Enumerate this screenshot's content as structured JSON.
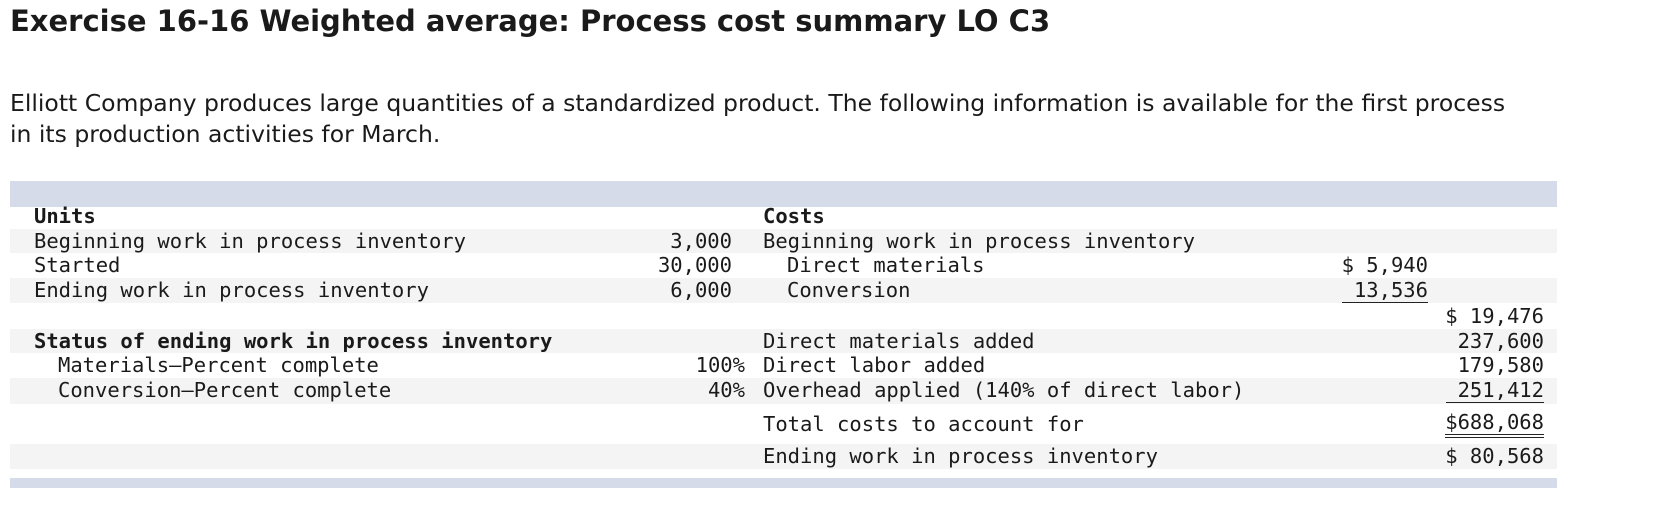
{
  "header": {
    "title": "Exercise 16-16 Weighted average: Process cost summary LO C3"
  },
  "intro": "Elliott Company produces large quantities of a standardized product. The following information is available for the first process in its production activities for March.",
  "table": {
    "rows": [
      {
        "left_label": "Units",
        "right_label": "Costs"
      },
      {
        "left_label": "Beginning work in process inventory",
        "left_value": "3,000",
        "right_label": "Beginning work in process inventory"
      },
      {
        "left_label": "Started",
        "left_value": "30,000",
        "right_label": "Direct materials",
        "sub_value": "$ 5,940"
      },
      {
        "left_label": "Ending work in process inventory",
        "left_value": "6,000",
        "right_label": "Conversion",
        "sub_value": "13,536"
      },
      {
        "total": "$ 19,476"
      },
      {
        "left_label": "Status of ending work in process inventory",
        "right_label": "Direct materials added",
        "total": "237,600"
      },
      {
        "left_label": "Materials—Percent complete",
        "left_value": "100%",
        "right_label": "Direct labor added",
        "total": "179,580"
      },
      {
        "left_label": "Conversion—Percent complete",
        "left_value": "40%",
        "right_label": "Overhead applied (140% of direct labor)",
        "total": "251,412"
      },
      {
        "right_label": "Total costs to account for",
        "total": "$688,068"
      },
      {
        "right_label": "Ending work in process inventory",
        "total": "$ 80,568"
      }
    ]
  }
}
